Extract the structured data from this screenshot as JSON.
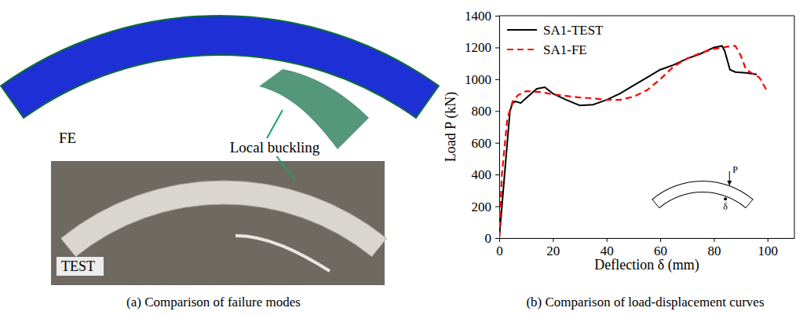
{
  "panel_a": {
    "caption": "(a) Comparison of failure modes",
    "labels": [
      "FE",
      "Local buckling",
      "TEST"
    ]
  },
  "chart_data": {
    "type": "line",
    "title": "(b) Comparison of load-displacement curves",
    "x_label": "Deflection δ (mm)",
    "y_label": "Load P (kN)",
    "xlim": [
      0,
      110
    ],
    "xticks": [
      0,
      20,
      40,
      60,
      80,
      100
    ],
    "ylim": [
      0,
      1400
    ],
    "yticks": [
      0,
      200,
      400,
      600,
      800,
      1000,
      1200,
      1400
    ],
    "legend": "upper left",
    "grid": false,
    "annotations": [
      "P",
      "δ"
    ],
    "series": [
      {
        "name": "SA1-TEST",
        "color": "#000000",
        "line_style": "solid",
        "x": [
          0,
          2,
          4,
          5,
          6,
          8,
          10,
          14,
          17,
          20,
          25,
          30,
          35,
          40,
          45,
          50,
          55,
          60,
          65,
          70,
          75,
          80,
          83,
          84,
          86,
          88,
          92,
          96
        ],
        "values": [
          0,
          400,
          800,
          850,
          860,
          850,
          880,
          940,
          950,
          910,
          870,
          835,
          840,
          870,
          910,
          960,
          1010,
          1060,
          1090,
          1130,
          1160,
          1200,
          1210,
          1180,
          1060,
          1045,
          1040,
          1030
        ]
      },
      {
        "name": "SA1-FE",
        "color": "#ff0000",
        "line_style": "dashed",
        "x": [
          0,
          1,
          3,
          5,
          7,
          10,
          15,
          20,
          25,
          30,
          35,
          40,
          45,
          50,
          55,
          60,
          65,
          70,
          75,
          80,
          85,
          88,
          90,
          92,
          95,
          97,
          100
        ],
        "values": [
          0,
          400,
          750,
          860,
          900,
          925,
          920,
          905,
          895,
          885,
          880,
          870,
          870,
          890,
          930,
          1000,
          1080,
          1130,
          1165,
          1190,
          1205,
          1210,
          1150,
          1060,
          1030,
          1010,
          920
        ]
      }
    ]
  }
}
